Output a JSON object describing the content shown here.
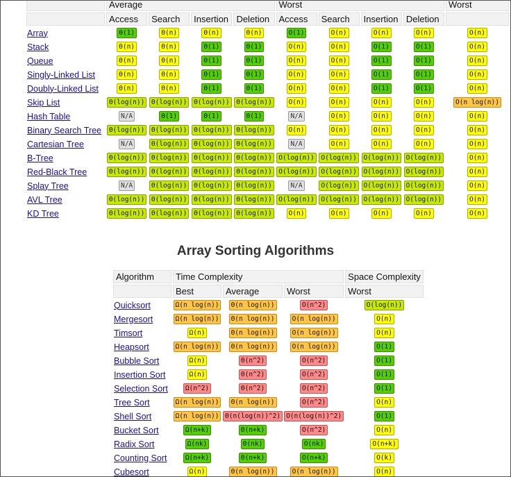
{
  "ds_table": {
    "top_row": [
      "",
      "Average",
      "Worst",
      "Worst"
    ],
    "sub_headers": [
      "Access",
      "Search",
      "Insertion",
      "Deletion",
      "Access",
      "Search",
      "Insertion",
      "Deletion"
    ],
    "rows": [
      {
        "name": "Array",
        "cells": [
          [
            "Θ(1)",
            "green"
          ],
          [
            "Θ(n)",
            "yellow"
          ],
          [
            "Θ(n)",
            "yellow"
          ],
          [
            "Θ(n)",
            "yellow"
          ],
          [
            "O(1)",
            "green"
          ],
          [
            "O(n)",
            "yellow"
          ],
          [
            "O(n)",
            "yellow"
          ],
          [
            "O(n)",
            "yellow"
          ]
        ],
        "space": [
          "O(n)",
          "yellow"
        ]
      },
      {
        "name": "Stack",
        "cells": [
          [
            "Θ(n)",
            "yellow"
          ],
          [
            "Θ(n)",
            "yellow"
          ],
          [
            "Θ(1)",
            "green"
          ],
          [
            "Θ(1)",
            "green"
          ],
          [
            "O(n)",
            "yellow"
          ],
          [
            "O(n)",
            "yellow"
          ],
          [
            "O(1)",
            "green"
          ],
          [
            "O(1)",
            "green"
          ]
        ],
        "space": [
          "O(n)",
          "yellow"
        ]
      },
      {
        "name": "Queue",
        "cells": [
          [
            "Θ(n)",
            "yellow"
          ],
          [
            "Θ(n)",
            "yellow"
          ],
          [
            "Θ(1)",
            "green"
          ],
          [
            "Θ(1)",
            "green"
          ],
          [
            "O(n)",
            "yellow"
          ],
          [
            "O(n)",
            "yellow"
          ],
          [
            "O(1)",
            "green"
          ],
          [
            "O(1)",
            "green"
          ]
        ],
        "space": [
          "O(n)",
          "yellow"
        ]
      },
      {
        "name": "Singly-Linked List",
        "cells": [
          [
            "Θ(n)",
            "yellow"
          ],
          [
            "Θ(n)",
            "yellow"
          ],
          [
            "Θ(1)",
            "green"
          ],
          [
            "Θ(1)",
            "green"
          ],
          [
            "O(n)",
            "yellow"
          ],
          [
            "O(n)",
            "yellow"
          ],
          [
            "O(1)",
            "green"
          ],
          [
            "O(1)",
            "green"
          ]
        ],
        "space": [
          "O(n)",
          "yellow"
        ]
      },
      {
        "name": "Doubly-Linked List",
        "cells": [
          [
            "Θ(n)",
            "yellow"
          ],
          [
            "Θ(n)",
            "yellow"
          ],
          [
            "Θ(1)",
            "green"
          ],
          [
            "Θ(1)",
            "green"
          ],
          [
            "O(n)",
            "yellow"
          ],
          [
            "O(n)",
            "yellow"
          ],
          [
            "O(1)",
            "green"
          ],
          [
            "O(1)",
            "green"
          ]
        ],
        "space": [
          "O(n)",
          "yellow"
        ]
      },
      {
        "name": "Skip List",
        "cells": [
          [
            "Θ(log(n))",
            "lgreen"
          ],
          [
            "Θ(log(n))",
            "lgreen"
          ],
          [
            "Θ(log(n))",
            "lgreen"
          ],
          [
            "Θ(log(n))",
            "lgreen"
          ],
          [
            "O(n)",
            "yellow"
          ],
          [
            "O(n)",
            "yellow"
          ],
          [
            "O(n)",
            "yellow"
          ],
          [
            "O(n)",
            "yellow"
          ]
        ],
        "space": [
          "O(n log(n))",
          "orange"
        ]
      },
      {
        "name": "Hash Table",
        "cells": [
          [
            "N/A",
            "gray"
          ],
          [
            "Θ(1)",
            "green"
          ],
          [
            "Θ(1)",
            "green"
          ],
          [
            "Θ(1)",
            "green"
          ],
          [
            "N/A",
            "gray"
          ],
          [
            "O(n)",
            "yellow"
          ],
          [
            "O(n)",
            "yellow"
          ],
          [
            "O(n)",
            "yellow"
          ]
        ],
        "space": [
          "O(n)",
          "yellow"
        ]
      },
      {
        "name": "Binary Search Tree",
        "cells": [
          [
            "Θ(log(n))",
            "lgreen"
          ],
          [
            "Θ(log(n))",
            "lgreen"
          ],
          [
            "Θ(log(n))",
            "lgreen"
          ],
          [
            "Θ(log(n))",
            "lgreen"
          ],
          [
            "O(n)",
            "yellow"
          ],
          [
            "O(n)",
            "yellow"
          ],
          [
            "O(n)",
            "yellow"
          ],
          [
            "O(n)",
            "yellow"
          ]
        ],
        "space": [
          "O(n)",
          "yellow"
        ]
      },
      {
        "name": "Cartesian Tree",
        "cells": [
          [
            "N/A",
            "gray"
          ],
          [
            "Θ(log(n))",
            "lgreen"
          ],
          [
            "Θ(log(n))",
            "lgreen"
          ],
          [
            "Θ(log(n))",
            "lgreen"
          ],
          [
            "N/A",
            "gray"
          ],
          [
            "O(n)",
            "yellow"
          ],
          [
            "O(n)",
            "yellow"
          ],
          [
            "O(n)",
            "yellow"
          ]
        ],
        "space": [
          "O(n)",
          "yellow"
        ]
      },
      {
        "name": "B-Tree",
        "cells": [
          [
            "Θ(log(n))",
            "lgreen"
          ],
          [
            "Θ(log(n))",
            "lgreen"
          ],
          [
            "Θ(log(n))",
            "lgreen"
          ],
          [
            "Θ(log(n))",
            "lgreen"
          ],
          [
            "O(log(n))",
            "lgreen"
          ],
          [
            "O(log(n))",
            "lgreen"
          ],
          [
            "O(log(n))",
            "lgreen"
          ],
          [
            "O(log(n))",
            "lgreen"
          ]
        ],
        "space": [
          "O(n)",
          "yellow"
        ]
      },
      {
        "name": "Red-Black Tree",
        "cells": [
          [
            "Θ(log(n))",
            "lgreen"
          ],
          [
            "Θ(log(n))",
            "lgreen"
          ],
          [
            "Θ(log(n))",
            "lgreen"
          ],
          [
            "Θ(log(n))",
            "lgreen"
          ],
          [
            "O(log(n))",
            "lgreen"
          ],
          [
            "O(log(n))",
            "lgreen"
          ],
          [
            "O(log(n))",
            "lgreen"
          ],
          [
            "O(log(n))",
            "lgreen"
          ]
        ],
        "space": [
          "O(n)",
          "yellow"
        ]
      },
      {
        "name": "Splay Tree",
        "cells": [
          [
            "N/A",
            "gray"
          ],
          [
            "Θ(log(n))",
            "lgreen"
          ],
          [
            "Θ(log(n))",
            "lgreen"
          ],
          [
            "Θ(log(n))",
            "lgreen"
          ],
          [
            "N/A",
            "gray"
          ],
          [
            "O(log(n))",
            "lgreen"
          ],
          [
            "O(log(n))",
            "lgreen"
          ],
          [
            "O(log(n))",
            "lgreen"
          ]
        ],
        "space": [
          "O(n)",
          "yellow"
        ]
      },
      {
        "name": "AVL Tree",
        "cells": [
          [
            "Θ(log(n))",
            "lgreen"
          ],
          [
            "Θ(log(n))",
            "lgreen"
          ],
          [
            "Θ(log(n))",
            "lgreen"
          ],
          [
            "Θ(log(n))",
            "lgreen"
          ],
          [
            "O(log(n))",
            "lgreen"
          ],
          [
            "O(log(n))",
            "lgreen"
          ],
          [
            "O(log(n))",
            "lgreen"
          ],
          [
            "O(log(n))",
            "lgreen"
          ]
        ],
        "space": [
          "O(n)",
          "yellow"
        ]
      },
      {
        "name": "KD Tree",
        "cells": [
          [
            "Θ(log(n))",
            "lgreen"
          ],
          [
            "Θ(log(n))",
            "lgreen"
          ],
          [
            "Θ(log(n))",
            "lgreen"
          ],
          [
            "Θ(log(n))",
            "lgreen"
          ],
          [
            "O(n)",
            "yellow"
          ],
          [
            "O(n)",
            "yellow"
          ],
          [
            "O(n)",
            "yellow"
          ],
          [
            "O(n)",
            "yellow"
          ]
        ],
        "space": [
          "O(n)",
          "yellow"
        ]
      }
    ]
  },
  "sorting": {
    "title": "Array Sorting Algorithms",
    "header_row1": [
      "Algorithm",
      "Time Complexity",
      "Space Complexity"
    ],
    "header_row2": [
      "",
      "Best",
      "Average",
      "Worst",
      "Worst"
    ],
    "rows": [
      {
        "name": "Quicksort",
        "cells": [
          [
            "Ω(n log(n))",
            "orange"
          ],
          [
            "Θ(n log(n))",
            "orange"
          ],
          [
            "O(n^2)",
            "red"
          ],
          [
            "O(log(n))",
            "lgreen"
          ]
        ]
      },
      {
        "name": "Mergesort",
        "cells": [
          [
            "Ω(n log(n))",
            "orange"
          ],
          [
            "Θ(n log(n))",
            "orange"
          ],
          [
            "O(n log(n))",
            "orange"
          ],
          [
            "O(n)",
            "yellow"
          ]
        ]
      },
      {
        "name": "Timsort",
        "cells": [
          [
            "Ω(n)",
            "yellow"
          ],
          [
            "Θ(n log(n))",
            "orange"
          ],
          [
            "O(n log(n))",
            "orange"
          ],
          [
            "O(n)",
            "yellow"
          ]
        ]
      },
      {
        "name": "Heapsort",
        "cells": [
          [
            "Ω(n log(n))",
            "orange"
          ],
          [
            "Θ(n log(n))",
            "orange"
          ],
          [
            "O(n log(n))",
            "orange"
          ],
          [
            "O(1)",
            "green"
          ]
        ]
      },
      {
        "name": "Bubble Sort",
        "cells": [
          [
            "Ω(n)",
            "yellow"
          ],
          [
            "Θ(n^2)",
            "red"
          ],
          [
            "O(n^2)",
            "red"
          ],
          [
            "O(1)",
            "green"
          ]
        ]
      },
      {
        "name": "Insertion Sort",
        "cells": [
          [
            "Ω(n)",
            "yellow"
          ],
          [
            "Θ(n^2)",
            "red"
          ],
          [
            "O(n^2)",
            "red"
          ],
          [
            "O(1)",
            "green"
          ]
        ]
      },
      {
        "name": "Selection Sort",
        "cells": [
          [
            "Ω(n^2)",
            "red"
          ],
          [
            "Θ(n^2)",
            "red"
          ],
          [
            "O(n^2)",
            "red"
          ],
          [
            "O(1)",
            "green"
          ]
        ]
      },
      {
        "name": "Tree Sort",
        "cells": [
          [
            "Ω(n log(n))",
            "orange"
          ],
          [
            "Θ(n log(n))",
            "orange"
          ],
          [
            "O(n^2)",
            "red"
          ],
          [
            "O(n)",
            "yellow"
          ]
        ]
      },
      {
        "name": "Shell Sort",
        "cells": [
          [
            "Ω(n log(n))",
            "orange"
          ],
          [
            "Θ(n(log(n))^2)",
            "red"
          ],
          [
            "O(n(log(n))^2)",
            "red"
          ],
          [
            "O(1)",
            "green"
          ]
        ]
      },
      {
        "name": "Bucket Sort",
        "cells": [
          [
            "Ω(n+k)",
            "green"
          ],
          [
            "Θ(n+k)",
            "green"
          ],
          [
            "O(n^2)",
            "red"
          ],
          [
            "O(n)",
            "yellow"
          ]
        ]
      },
      {
        "name": "Radix Sort",
        "cells": [
          [
            "Ω(nk)",
            "green"
          ],
          [
            "Θ(nk)",
            "green"
          ],
          [
            "O(nk)",
            "green"
          ],
          [
            "O(n+k)",
            "yellow"
          ]
        ]
      },
      {
        "name": "Counting Sort",
        "cells": [
          [
            "Ω(n+k)",
            "green"
          ],
          [
            "Θ(n+k)",
            "green"
          ],
          [
            "O(n+k)",
            "green"
          ],
          [
            "O(k)",
            "yellow"
          ]
        ]
      },
      {
        "name": "Cubesort",
        "cells": [
          [
            "Ω(n)",
            "yellow"
          ],
          [
            "Θ(n log(n))",
            "orange"
          ],
          [
            "O(n log(n))",
            "orange"
          ],
          [
            "O(n)",
            "yellow"
          ]
        ]
      }
    ]
  },
  "colors": {
    "green": "#53d000",
    "lgreen": "#c8ea00",
    "yellow": "#ffff00",
    "orange": "#ffc543",
    "red": "#ff8989",
    "gray": "#e0e0e0",
    "link": "#1a0dab"
  }
}
